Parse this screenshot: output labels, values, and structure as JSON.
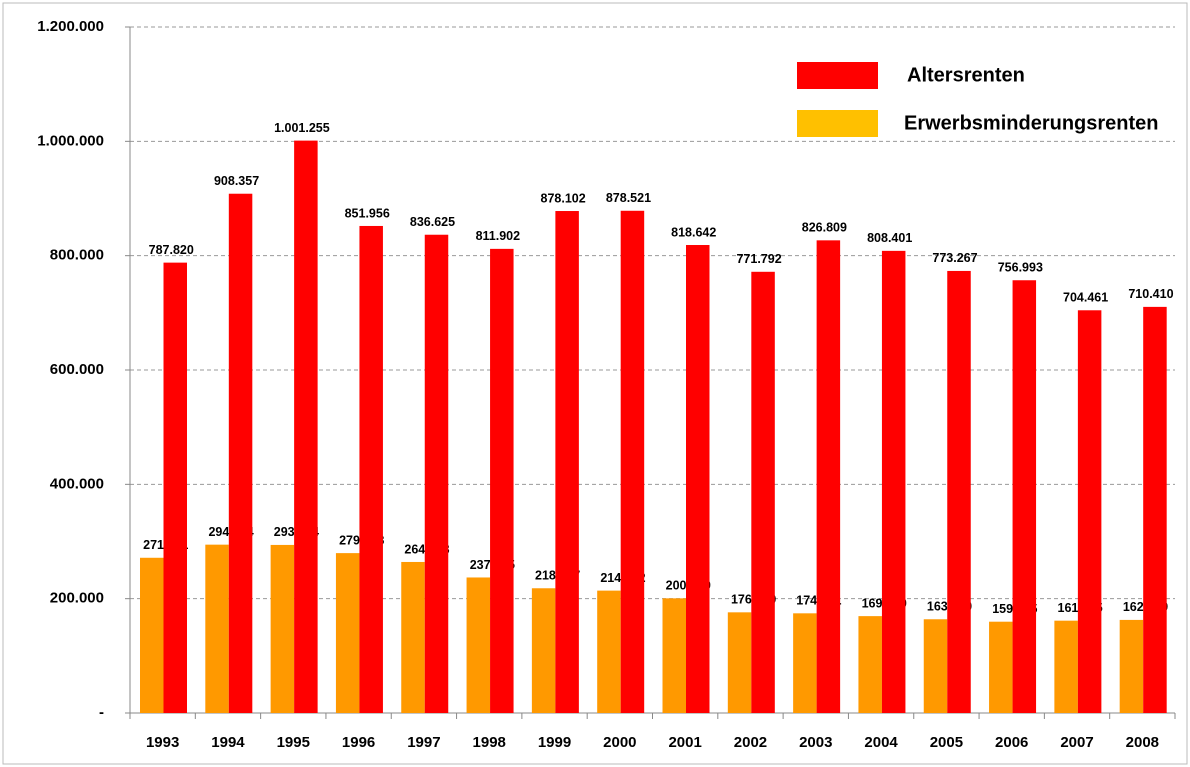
{
  "chart_data": {
    "type": "bar",
    "categories": [
      "1993",
      "1994",
      "1995",
      "1996",
      "1997",
      "1998",
      "1999",
      "2000",
      "2001",
      "2002",
      "2003",
      "2004",
      "2005",
      "2006",
      "2007",
      "2008"
    ],
    "series": [
      {
        "name": "Erwerbsminderungsrenten",
        "color": "#ff9900",
        "legend_color": "#ffc000",
        "values": [
          271541,
          294484,
          293994,
          279668,
          264203,
          237075,
          218187,
          214082,
          200579,
          176099,
          174361,
          169460,
          163960,
          159715,
          161515,
          162839
        ],
        "value_labels": [
          "271.541",
          "294.484",
          "293.994",
          "279.668",
          "264.203",
          "237.075",
          "218.187",
          "214.082",
          "200.579",
          "176.099",
          "174.361",
          "169.460",
          "163.960",
          "159.715",
          "161.515",
          "162.839"
        ]
      },
      {
        "name": "Altersrenten",
        "color": "#ff0000",
        "legend_color": "#ff0000",
        "values": [
          787820,
          908357,
          1001255,
          851956,
          836625,
          811902,
          878102,
          878521,
          818642,
          771792,
          826809,
          808401,
          773267,
          756993,
          704461,
          710410
        ],
        "value_labels": [
          "787.820",
          "908.357",
          "1.001.255",
          "851.956",
          "836.625",
          "811.902",
          "878.102",
          "878.521",
          "818.642",
          "771.792",
          "826.809",
          "808.401",
          "773.267",
          "756.993",
          "704.461",
          "710.410"
        ]
      }
    ],
    "ylim": [
      0,
      1200000
    ],
    "yticks": [
      {
        "value": 0,
        "label": "-"
      },
      {
        "value": 200000,
        "label": "200.000"
      },
      {
        "value": 400000,
        "label": "400.000"
      },
      {
        "value": 600000,
        "label": "600.000"
      },
      {
        "value": 800000,
        "label": "800.000"
      },
      {
        "value": 1000000,
        "label": "1.000.000"
      },
      {
        "value": 1200000,
        "label": "1.200.000"
      }
    ],
    "grid": true
  }
}
